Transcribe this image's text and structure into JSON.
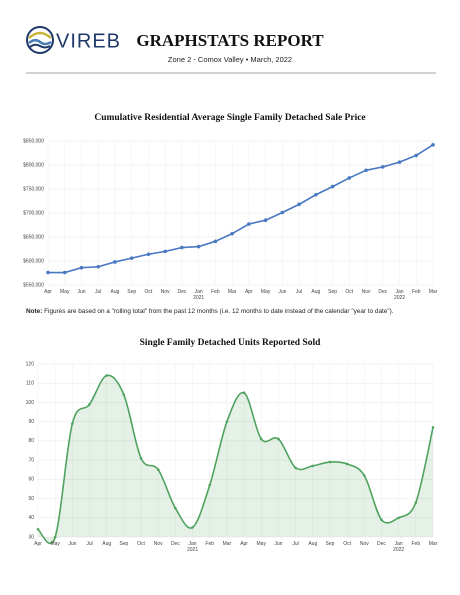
{
  "header": {
    "logo": "VIREB",
    "title": "GRAPHSTATS REPORT",
    "subtitle": "Zone 2 - Comox Valley • March, 2022"
  },
  "note": {
    "label": "Note:",
    "text": "Figures are based on a \"rolling total\" from the past 12 months (i.e. 12 months to date instead of the calendar \"year to date\")."
  },
  "chart_data": [
    {
      "type": "line",
      "title": "Cumulative Residential Average Single Family Detached Sale Price",
      "categories": [
        "Apr",
        "May",
        "Jun",
        "Jul",
        "Aug",
        "Sep",
        "Oct",
        "Nov",
        "Dec",
        "Jan\n2021",
        "Feb",
        "Mar",
        "Apr",
        "May",
        "Jun",
        "Jul",
        "Aug",
        "Sep",
        "Oct",
        "Nov",
        "Dec",
        "Jan\n2022",
        "Feb",
        "Mar"
      ],
      "series": [
        {
          "color": "#4a78c2",
          "values": [
            576000,
            576000,
            586000,
            588000,
            598000,
            606000,
            614000,
            620000,
            628000,
            630000,
            641000,
            657000,
            677000,
            685000,
            701000,
            718000,
            738000,
            755000,
            773000,
            789000,
            796000,
            806000,
            820000,
            842000
          ]
        }
      ],
      "ylim": [
        550000,
        850000
      ],
      "yticks": [
        {
          "value": 550000,
          "label": "$550,000"
        },
        {
          "value": 600000,
          "label": "$600,000"
        },
        {
          "value": 650000,
          "label": "$650,000"
        },
        {
          "value": 700000,
          "label": "$700,000"
        },
        {
          "value": 750000,
          "label": "$750,000"
        },
        {
          "value": 800000,
          "label": "$800,000"
        },
        {
          "value": 850000,
          "label": "$850,000"
        }
      ],
      "grid": true
    },
    {
      "type": "area",
      "title": "Single Family Detached Units Reported Sold",
      "categories": [
        "Apr",
        "May",
        "Jun",
        "Jul",
        "Aug",
        "Sep",
        "Oct",
        "Nov",
        "Dec",
        "Jan\n2021",
        "Feb",
        "Mar",
        "Apr",
        "May",
        "Jun",
        "Jul",
        "Aug",
        "Sep",
        "Oct",
        "Nov",
        "Dec",
        "Jan\n2022",
        "Feb",
        "Mar"
      ],
      "series": [
        {
          "color": "#4fa35f",
          "values": [
            34,
            30,
            89,
            99,
            114,
            104,
            71,
            65,
            45,
            35,
            57,
            90,
            105,
            81,
            81,
            66,
            67,
            69,
            68,
            62,
            39,
            40,
            48,
            87
          ]
        }
      ],
      "ylim": [
        30,
        120
      ],
      "yticks": [
        30,
        40,
        50,
        60,
        70,
        80,
        90,
        100,
        110,
        120
      ],
      "grid": true
    }
  ]
}
